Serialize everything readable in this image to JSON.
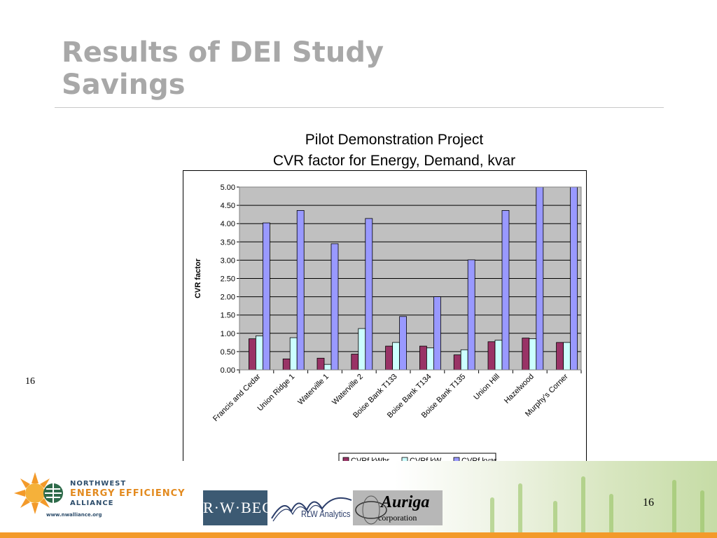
{
  "slide": {
    "title_line1": "Results of DEI Study",
    "title_line2": "Savings",
    "page_number_left": "16",
    "page_number_right": "16"
  },
  "chart_data": {
    "type": "bar",
    "title_line1": "Pilot Demonstration Project",
    "title_line2": "CVR factor for Energy, Demand, kvar",
    "ylabel": "CVR factor",
    "xlabel": "",
    "ylim": [
      0,
      5
    ],
    "yticks": [
      "0.00",
      "0.50",
      "1.00",
      "1.50",
      "2.00",
      "2.50",
      "3.00",
      "3.50",
      "4.00",
      "4.50",
      "5.00"
    ],
    "grid": true,
    "legend_position": "bottom",
    "categories": [
      "Francis and Cedar",
      "Union Ridge 1",
      "Waterville 1",
      "Waterville 2",
      "Boise Bank T133",
      "Boise Bank T134",
      "Boise Bank T135",
      "Union Hill",
      "Hazelwood",
      "Murphy's Corner"
    ],
    "series": [
      {
        "name": "CVRf kWhr",
        "color": "#993366",
        "values": [
          0.85,
          0.3,
          0.32,
          0.43,
          0.65,
          0.65,
          0.41,
          0.77,
          0.87,
          0.75
        ]
      },
      {
        "name": "CVRf kW",
        "color": "#ccffff",
        "values": [
          0.93,
          0.88,
          0.15,
          1.13,
          0.75,
          0.6,
          0.55,
          0.81,
          0.85,
          0.75
        ]
      },
      {
        "name": "CVRf kvar",
        "color": "#9999ff",
        "values": [
          4.02,
          4.36,
          3.45,
          4.14,
          1.46,
          2.0,
          3.01,
          4.36,
          5.05,
          5.05
        ]
      }
    ],
    "plot_background": "#c0c0c0"
  },
  "logos": {
    "nwea_line1": "NORTHWEST",
    "nwea_line2": "ENERGY EFFICIENCY",
    "nwea_line3": "ALLIANCE",
    "nwea_url": "www.nwalliance.org",
    "rwbeck": "R·W·BECK",
    "rlw": "RLW Analytics",
    "auriga_name": "Auriga",
    "auriga_sub": "corporation"
  },
  "colors": {
    "title": "#a8a8a8",
    "accent_orange": "#f39a2a"
  }
}
